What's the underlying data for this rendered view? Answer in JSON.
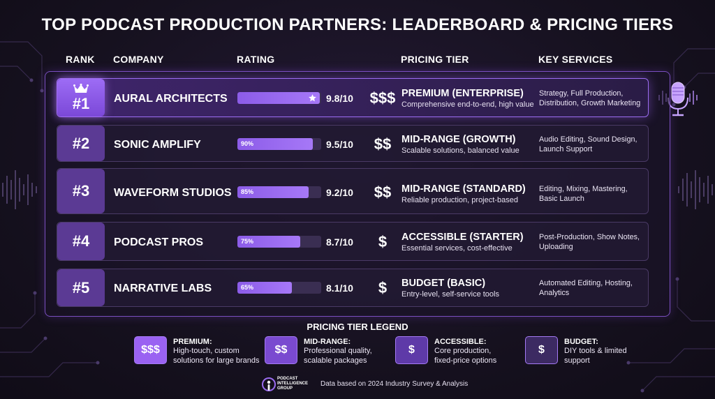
{
  "title": "TOP PODCAST PRODUCTION PARTNERS: LEADERBOARD & PRICING TIERS",
  "headers": {
    "rank": "RANK",
    "company": "COMPANY",
    "rating": "RATING",
    "pricing_tier": "PRICING TIER",
    "key_services": "KEY SERVICES"
  },
  "rows": [
    {
      "rank": "#1",
      "company": "AURAL ARCHITECTS",
      "bar_label": "",
      "bar_fraction": 0.98,
      "score": "9.8/10",
      "dollars": "$$$",
      "tier_name": "PREMIUM (ENTERPRISE)",
      "tier_desc": "Comprehensive end-to-end, high value",
      "services": "Strategy, Full Production, Distribution, Growth Marketing"
    },
    {
      "rank": "#2",
      "company": "SONIC AMPLIFY",
      "bar_label": "90%",
      "bar_fraction": 0.9,
      "score": "9.5/10",
      "dollars": "$$",
      "tier_name": "MID-RANGE (GROWTH)",
      "tier_desc": "Scalable solutions, balanced value",
      "services": "Audio Editing, Sound Design, Launch Support"
    },
    {
      "rank": "#3",
      "company": "WAVEFORM STUDIOS",
      "bar_label": "85%",
      "bar_fraction": 0.85,
      "score": "9.2/10",
      "dollars": "$$",
      "tier_name": "MID-RANGE (STANDARD)",
      "tier_desc": "Reliable production, project-based",
      "services": "Editing, Mixing, Mastering, Basic Launch"
    },
    {
      "rank": "#4",
      "company": "PODCAST PROS",
      "bar_label": "75%",
      "bar_fraction": 0.75,
      "score": "8.7/10",
      "dollars": "$",
      "tier_name": "ACCESSIBLE (STARTER)",
      "tier_desc": "Essential services, cost-effective",
      "services": "Post-Production, Show Notes, Uploading"
    },
    {
      "rank": "#5",
      "company": "NARRATIVE LABS",
      "bar_label": "65%",
      "bar_fraction": 0.65,
      "score": "8.1/10",
      "dollars": "$",
      "tier_name": "BUDGET (BASIC)",
      "tier_desc": "Entry-level, self-service tools",
      "services": "Automated Editing, Hosting, Analytics"
    }
  ],
  "legend": {
    "title": "PRICING TIER LEGEND",
    "items": [
      {
        "symbol": "$$$",
        "name": "PREMIUM:",
        "desc": "High-touch, custom solutions for large brands",
        "color": "#9a62f2"
      },
      {
        "symbol": "$$",
        "name": "MID-RANGE:",
        "desc": "Professional quality, scalable packages",
        "color": "#7a4ad0"
      },
      {
        "symbol": "$",
        "name": "ACCESSIBLE:",
        "desc": "Core production, fixed-price options",
        "color": "#5e3aa8"
      },
      {
        "symbol": "$",
        "name": "BUDGET:",
        "desc": "DIY tools & limited support",
        "color": "#3c2a62"
      }
    ]
  },
  "footer": {
    "brand_line1": "PODCAST",
    "brand_line2": "INTELLIGENCE",
    "brand_line3": "GROUP",
    "note": "Data based on 2024 Industry Survey & Analysis"
  },
  "colors": {
    "accent": "#9b6cf0",
    "background": "#16111f",
    "row_border": "#4a3a66"
  }
}
